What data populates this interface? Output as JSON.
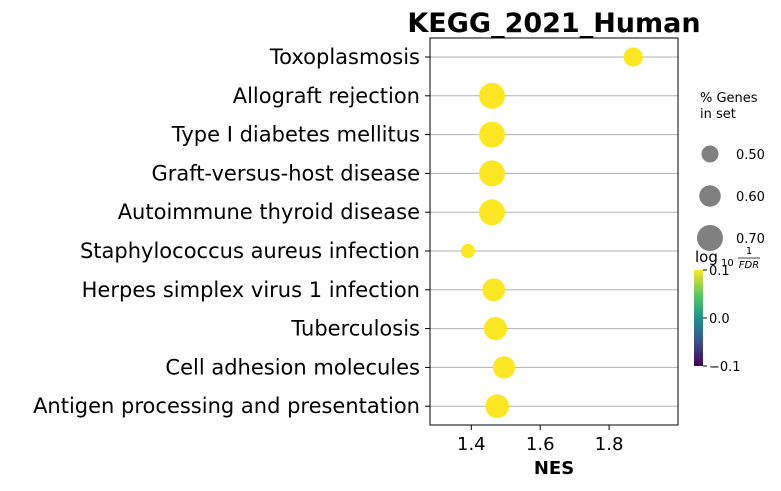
{
  "chart_data": {
    "type": "scatter",
    "title": "KEGG_2021_Human",
    "xlabel": "NES",
    "ylabel": "",
    "xlim": [
      1.28,
      2.0
    ],
    "xticks": [
      1.4,
      1.6,
      1.8
    ],
    "xtick_labels": [
      "1.4",
      "1.6",
      "1.8"
    ],
    "grid": "horizontal",
    "point_color": "#fde725",
    "categories": [
      "Toxoplasmosis",
      "Allograft rejection",
      "Type I diabetes mellitus",
      "Graft-versus-host disease",
      "Autoimmune thyroid disease",
      "Staphylococcus aureus infection",
      "Herpes simplex virus 1 infection",
      "Tuberculosis",
      "Cell adhesion molecules",
      "Antigen processing and presentation"
    ],
    "points": [
      {
        "category": "Toxoplasmosis",
        "nes": 1.87,
        "pct_genes": 0.55
      },
      {
        "category": "Allograft rejection",
        "nes": 1.46,
        "pct_genes": 0.7
      },
      {
        "category": "Type I diabetes mellitus",
        "nes": 1.46,
        "pct_genes": 0.7
      },
      {
        "category": "Graft-versus-host disease",
        "nes": 1.46,
        "pct_genes": 0.7
      },
      {
        "category": "Autoimmune thyroid disease",
        "nes": 1.46,
        "pct_genes": 0.7
      },
      {
        "category": "Staphylococcus aureus infection",
        "nes": 1.39,
        "pct_genes": 0.44
      },
      {
        "category": "Herpes simplex virus 1 infection",
        "nes": 1.465,
        "pct_genes": 0.63
      },
      {
        "category": "Tuberculosis",
        "nes": 1.47,
        "pct_genes": 0.64
      },
      {
        "category": "Cell adhesion molecules",
        "nes": 1.495,
        "pct_genes": 0.62
      },
      {
        "category": "Antigen processing and presentation",
        "nes": 1.475,
        "pct_genes": 0.65
      }
    ],
    "size_legend": {
      "title_line1": "% Genes",
      "title_line2": "in set",
      "marker_color": "#808080",
      "entries": [
        {
          "value": 0.5,
          "label": "0.50"
        },
        {
          "value": 0.6,
          "label": "0.60"
        },
        {
          "value": 0.7,
          "label": "0.70"
        }
      ]
    },
    "colorbar": {
      "title_main": "log",
      "title_sub": "10",
      "title_num": "1",
      "title_den": "FDR",
      "range": [
        -0.1,
        0.1
      ],
      "ticks": [
        {
          "value": 0.1,
          "label": "0.1"
        },
        {
          "value": 0.0,
          "label": "0.0"
        },
        {
          "value": -0.1,
          "label": "−0.1"
        }
      ],
      "colormap": [
        "#440154",
        "#3b528b",
        "#21918c",
        "#5ec962",
        "#fde725"
      ]
    }
  }
}
